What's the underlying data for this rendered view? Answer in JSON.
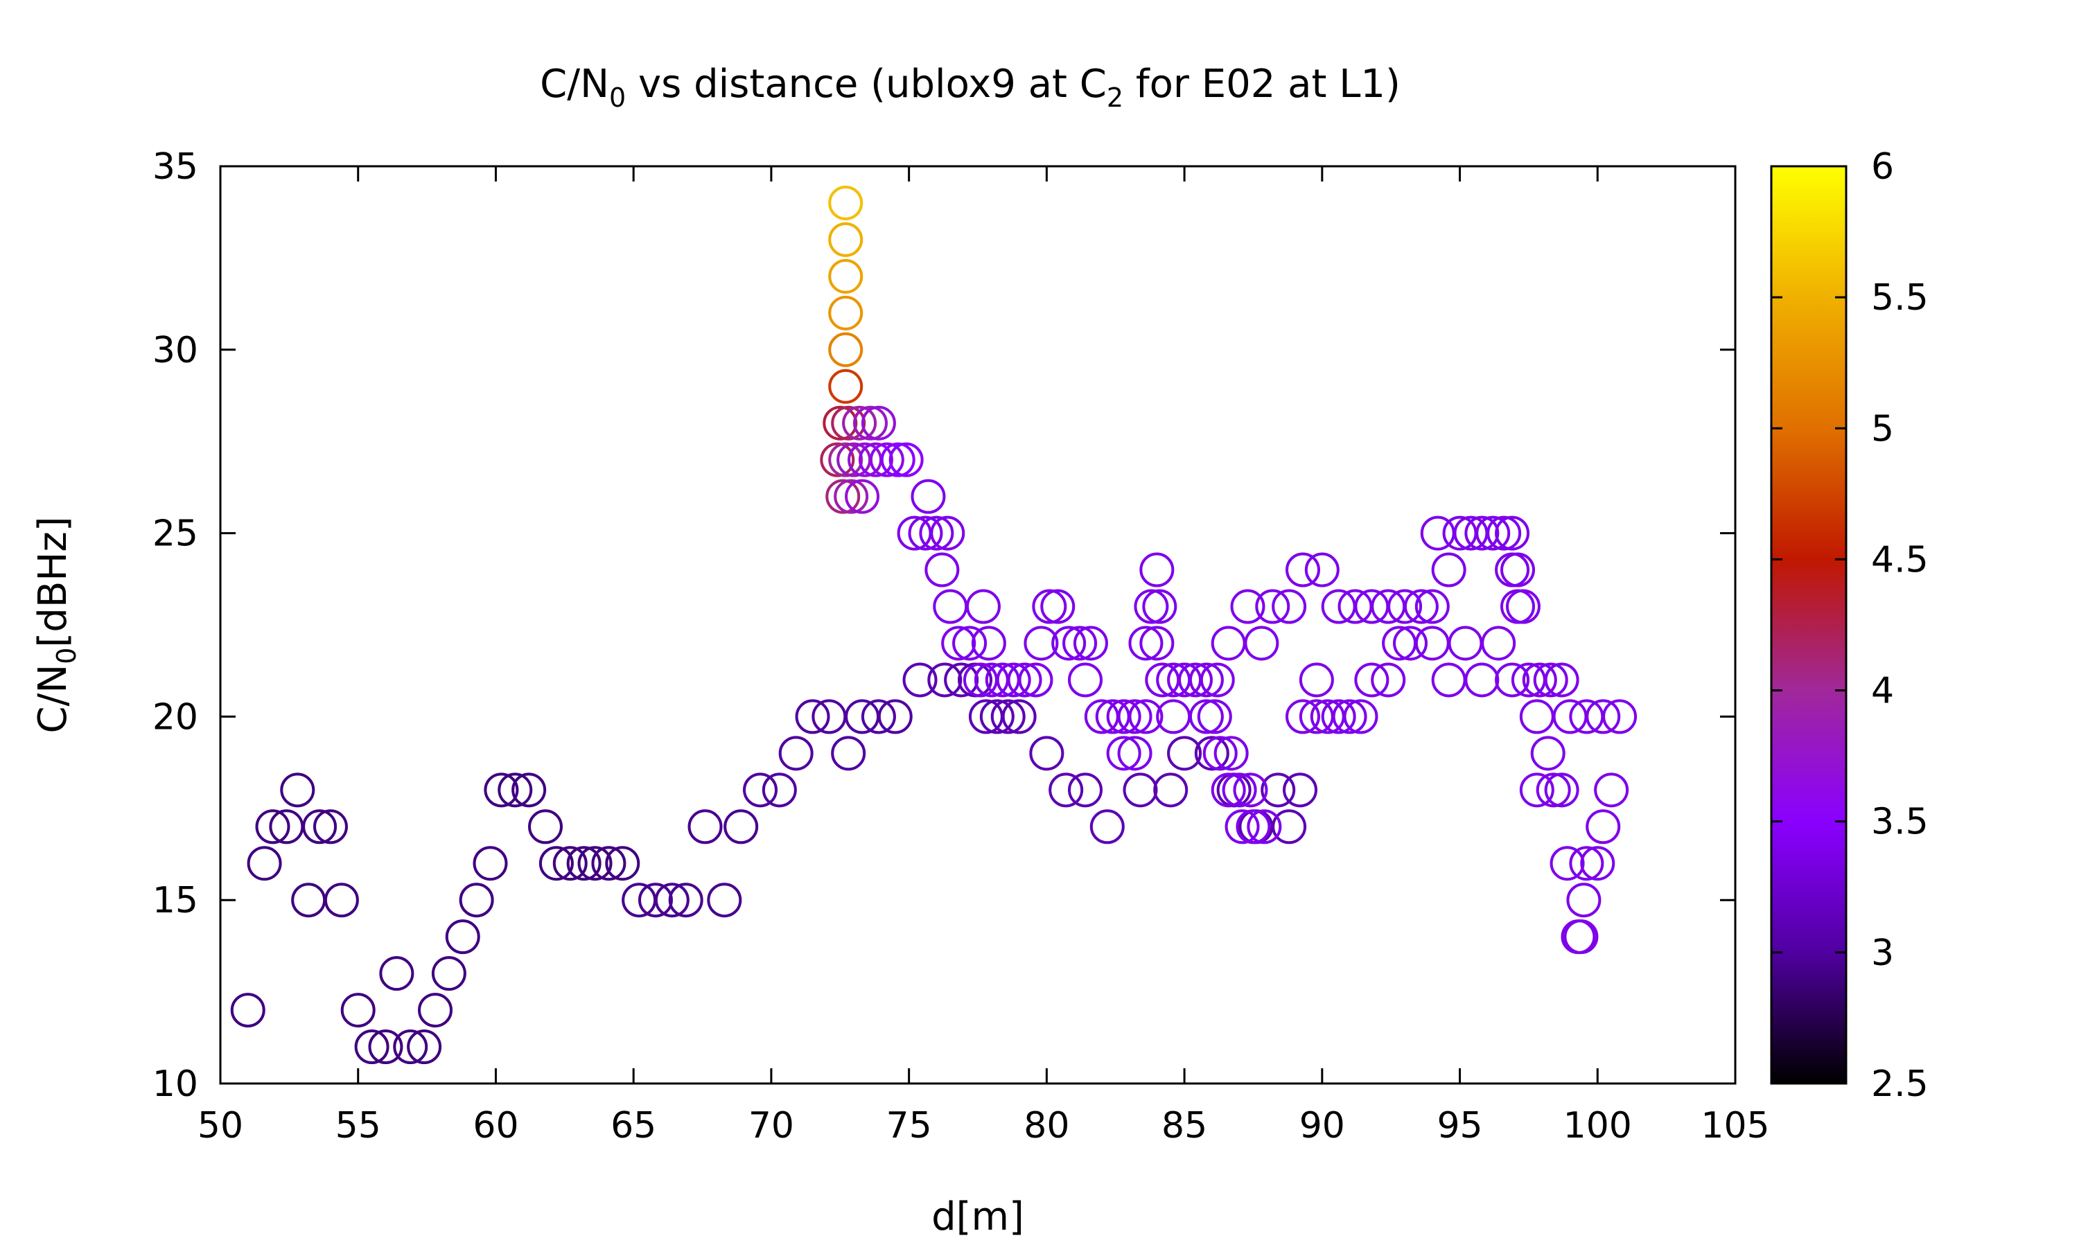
{
  "chart_data": {
    "type": "scatter",
    "title": {
      "main": "C/N",
      "sub1": "0",
      "mid": " vs distance (ublox9 at C",
      "sub2": "2",
      "end": " for E02 at L1)"
    },
    "xlabel": "d[m]",
    "ylabel": {
      "main": "C/N",
      "sub": "0",
      "end": "[dBHz]"
    },
    "xlim": [
      50,
      105
    ],
    "ylim": [
      10,
      35
    ],
    "xticks": [
      50,
      55,
      60,
      65,
      70,
      75,
      80,
      85,
      90,
      95,
      100,
      105
    ],
    "yticks": [
      10,
      15,
      20,
      25,
      30,
      35
    ],
    "colorbar": {
      "range": [
        2.5,
        6
      ],
      "ticks": [
        "2.5",
        "3",
        "3.5",
        "4",
        "4.5",
        "5",
        "5.5",
        "6"
      ],
      "palette": [
        "#000000",
        "#5000a0",
        "#8a00ff",
        "#a0289a",
        "#c01800",
        "#e07000",
        "#f0b000",
        "#ffff00"
      ]
    },
    "grid": false,
    "marker": "open-circle",
    "series": [
      {
        "points": [
          [
            51.0,
            12,
            2.9
          ],
          [
            51.6,
            16,
            2.9
          ],
          [
            51.9,
            17,
            2.9
          ],
          [
            52.4,
            17,
            2.9
          ],
          [
            52.8,
            18,
            2.9
          ],
          [
            53.2,
            15,
            2.9
          ],
          [
            53.6,
            17,
            2.9
          ],
          [
            54.0,
            17,
            2.9
          ],
          [
            54.4,
            15,
            2.9
          ],
          [
            55.0,
            12,
            2.9
          ],
          [
            55.5,
            11,
            2.9
          ],
          [
            56.0,
            11,
            2.9
          ],
          [
            56.4,
            13,
            2.9
          ],
          [
            56.9,
            11,
            2.9
          ],
          [
            57.4,
            11,
            2.9
          ],
          [
            57.8,
            12,
            2.9
          ],
          [
            58.3,
            13,
            2.9
          ],
          [
            58.8,
            14,
            2.9
          ],
          [
            59.3,
            15,
            2.9
          ],
          [
            59.8,
            16,
            2.9
          ],
          [
            60.2,
            18,
            2.9
          ],
          [
            60.7,
            18,
            2.9
          ],
          [
            61.2,
            18,
            2.9
          ],
          [
            61.8,
            17,
            2.9
          ],
          [
            62.2,
            16,
            2.9
          ],
          [
            62.7,
            16,
            2.9
          ],
          [
            63.2,
            16,
            2.9
          ],
          [
            63.6,
            16,
            2.9
          ],
          [
            64.1,
            16,
            2.9
          ],
          [
            64.6,
            16,
            2.9
          ],
          [
            65.2,
            15,
            2.95
          ],
          [
            65.8,
            15,
            2.95
          ],
          [
            66.4,
            15,
            2.95
          ],
          [
            66.9,
            15,
            2.95
          ],
          [
            67.6,
            17,
            2.95
          ],
          [
            68.3,
            15,
            2.95
          ],
          [
            68.9,
            17,
            2.95
          ],
          [
            69.6,
            18,
            3.0
          ],
          [
            70.3,
            18,
            3.0
          ],
          [
            70.9,
            19,
            3.0
          ],
          [
            71.5,
            20,
            3.0
          ],
          [
            72.1,
            20,
            3.0
          ],
          [
            72.8,
            19,
            3.0
          ],
          [
            73.3,
            20,
            3.0
          ],
          [
            73.9,
            20,
            3.0
          ],
          [
            74.5,
            20,
            3.0
          ],
          [
            75.4,
            21,
            3.1
          ],
          [
            76.3,
            21,
            3.1
          ],
          [
            76.9,
            21,
            3.1
          ],
          [
            77.4,
            21,
            3.1
          ],
          [
            77.8,
            20,
            3.1
          ],
          [
            78.2,
            20,
            3.1
          ],
          [
            78.6,
            20,
            3.1
          ],
          [
            79.0,
            20,
            3.1
          ],
          [
            80.0,
            19,
            3.1
          ],
          [
            80.7,
            18,
            3.1
          ],
          [
            81.4,
            18,
            3.1
          ],
          [
            82.2,
            17,
            3.1
          ],
          [
            83.4,
            18,
            3.1
          ],
          [
            84.5,
            18,
            3.1
          ],
          [
            85.0,
            19,
            3.1
          ],
          [
            86.0,
            19,
            3.1
          ],
          [
            86.8,
            18,
            3.1
          ],
          [
            87.6,
            17,
            3.1
          ],
          [
            88.4,
            18,
            3.1
          ],
          [
            88.8,
            17,
            3.1
          ],
          [
            89.2,
            18,
            3.1
          ],
          [
            72.7,
            34,
            5.6
          ],
          [
            72.7,
            33,
            5.5
          ],
          [
            72.7,
            32,
            5.4
          ],
          [
            72.7,
            31,
            5.3
          ],
          [
            72.7,
            30,
            5.15
          ],
          [
            72.7,
            29,
            4.7
          ],
          [
            72.5,
            28,
            4.3
          ],
          [
            72.8,
            28,
            4.2
          ],
          [
            73.2,
            28,
            3.9
          ],
          [
            73.6,
            28,
            3.8
          ],
          [
            73.9,
            28,
            3.7
          ],
          [
            72.4,
            27,
            4.2
          ],
          [
            72.7,
            27,
            4.0
          ],
          [
            73.0,
            27,
            3.8
          ],
          [
            73.4,
            27,
            3.7
          ],
          [
            73.8,
            27,
            3.6
          ],
          [
            74.2,
            27,
            3.6
          ],
          [
            74.6,
            27,
            3.5
          ],
          [
            74.9,
            27,
            3.5
          ],
          [
            72.6,
            26,
            4.1
          ],
          [
            72.9,
            26,
            3.9
          ],
          [
            73.3,
            26,
            3.7
          ],
          [
            75.2,
            25,
            3.4
          ],
          [
            75.6,
            25,
            3.4
          ],
          [
            76.0,
            25,
            3.4
          ],
          [
            76.4,
            25,
            3.4
          ],
          [
            75.7,
            26,
            3.4
          ],
          [
            76.2,
            24,
            3.4
          ],
          [
            76.5,
            23,
            3.4
          ],
          [
            76.8,
            22,
            3.4
          ],
          [
            77.2,
            22,
            3.4
          ],
          [
            77.7,
            23,
            3.4
          ],
          [
            77.9,
            22,
            3.4
          ],
          [
            77.6,
            21,
            3.4
          ],
          [
            78.0,
            21,
            3.4
          ],
          [
            78.4,
            21,
            3.4
          ],
          [
            78.8,
            21,
            3.4
          ],
          [
            79.2,
            21,
            3.4
          ],
          [
            79.6,
            21,
            3.4
          ],
          [
            79.8,
            22,
            3.4
          ],
          [
            80.1,
            23,
            3.4
          ],
          [
            80.4,
            23,
            3.4
          ],
          [
            80.8,
            22,
            3.4
          ],
          [
            81.2,
            22,
            3.4
          ],
          [
            81.6,
            22,
            3.4
          ],
          [
            81.4,
            21,
            3.4
          ],
          [
            82.0,
            20,
            3.4
          ],
          [
            82.4,
            20,
            3.4
          ],
          [
            82.8,
            20,
            3.4
          ],
          [
            83.2,
            20,
            3.4
          ],
          [
            83.6,
            20,
            3.4
          ],
          [
            82.8,
            19,
            3.4
          ],
          [
            83.2,
            19,
            3.4
          ],
          [
            83.6,
            22,
            3.4
          ],
          [
            83.8,
            23,
            3.4
          ],
          [
            84.0,
            24,
            3.4
          ],
          [
            84.1,
            23,
            3.4
          ],
          [
            84.0,
            22,
            3.4
          ],
          [
            84.2,
            21,
            3.4
          ],
          [
            84.6,
            21,
            3.4
          ],
          [
            85.0,
            21,
            3.4
          ],
          [
            85.4,
            21,
            3.4
          ],
          [
            85.8,
            21,
            3.4
          ],
          [
            86.2,
            21,
            3.4
          ],
          [
            84.6,
            20,
            3.4
          ],
          [
            85.8,
            20,
            3.4
          ],
          [
            86.1,
            20,
            3.4
          ],
          [
            86.3,
            19,
            3.4
          ],
          [
            86.7,
            19,
            3.4
          ],
          [
            86.6,
            18,
            3.4
          ],
          [
            87.0,
            18,
            3.4
          ],
          [
            87.4,
            18,
            3.4
          ],
          [
            87.1,
            17,
            3.4
          ],
          [
            87.5,
            17,
            3.4
          ],
          [
            87.9,
            17,
            3.4
          ],
          [
            86.6,
            22,
            3.4
          ],
          [
            87.3,
            23,
            3.4
          ],
          [
            87.8,
            22,
            3.4
          ],
          [
            88.2,
            23,
            3.4
          ],
          [
            88.8,
            23,
            3.4
          ],
          [
            89.3,
            24,
            3.4
          ],
          [
            90.0,
            24,
            3.4
          ],
          [
            89.8,
            21,
            3.4
          ],
          [
            89.3,
            20,
            3.4
          ],
          [
            89.8,
            20,
            3.4
          ],
          [
            90.2,
            20,
            3.4
          ],
          [
            90.6,
            20,
            3.4
          ],
          [
            91.0,
            20,
            3.4
          ],
          [
            91.4,
            20,
            3.4
          ],
          [
            90.6,
            23,
            3.4
          ],
          [
            91.2,
            23,
            3.4
          ],
          [
            91.8,
            23,
            3.4
          ],
          [
            92.4,
            23,
            3.4
          ],
          [
            93.0,
            23,
            3.4
          ],
          [
            93.6,
            23,
            3.4
          ],
          [
            94.0,
            23,
            3.4
          ],
          [
            91.8,
            21,
            3.4
          ],
          [
            92.4,
            21,
            3.4
          ],
          [
            92.8,
            22,
            3.4
          ],
          [
            93.2,
            22,
            3.4
          ],
          [
            94.0,
            22,
            3.4
          ],
          [
            94.2,
            25,
            3.4
          ],
          [
            94.6,
            24,
            3.4
          ],
          [
            94.6,
            21,
            3.4
          ],
          [
            95.0,
            25,
            3.4
          ],
          [
            95.4,
            25,
            3.4
          ],
          [
            95.8,
            25,
            3.4
          ],
          [
            96.2,
            25,
            3.4
          ],
          [
            96.6,
            25,
            3.4
          ],
          [
            96.9,
            25,
            3.4
          ],
          [
            95.2,
            22,
            3.4
          ],
          [
            95.8,
            21,
            3.4
          ],
          [
            96.4,
            22,
            3.4
          ],
          [
            96.9,
            24,
            3.4
          ],
          [
            97.1,
            24,
            3.4
          ],
          [
            97.1,
            23,
            3.4
          ],
          [
            97.3,
            23,
            3.4
          ],
          [
            96.9,
            21,
            3.4
          ],
          [
            97.5,
            21,
            3.4
          ],
          [
            97.9,
            21,
            3.4
          ],
          [
            98.3,
            21,
            3.4
          ],
          [
            98.7,
            21,
            3.4
          ],
          [
            97.8,
            20,
            3.4
          ],
          [
            98.2,
            19,
            3.4
          ],
          [
            97.8,
            18,
            3.4
          ],
          [
            98.4,
            18,
            3.4
          ],
          [
            98.7,
            18,
            3.4
          ],
          [
            98.9,
            16,
            3.4
          ],
          [
            99.3,
            14,
            3.4
          ],
          [
            99.4,
            14,
            3.4
          ],
          [
            99.5,
            15,
            3.4
          ],
          [
            99.6,
            16,
            3.4
          ],
          [
            100.0,
            16,
            3.4
          ],
          [
            100.2,
            17,
            3.4
          ],
          [
            100.5,
            18,
            3.4
          ],
          [
            99.0,
            20,
            3.4
          ],
          [
            99.6,
            20,
            3.4
          ],
          [
            100.2,
            20,
            3.4
          ],
          [
            100.8,
            20,
            3.4
          ]
        ]
      }
    ]
  }
}
